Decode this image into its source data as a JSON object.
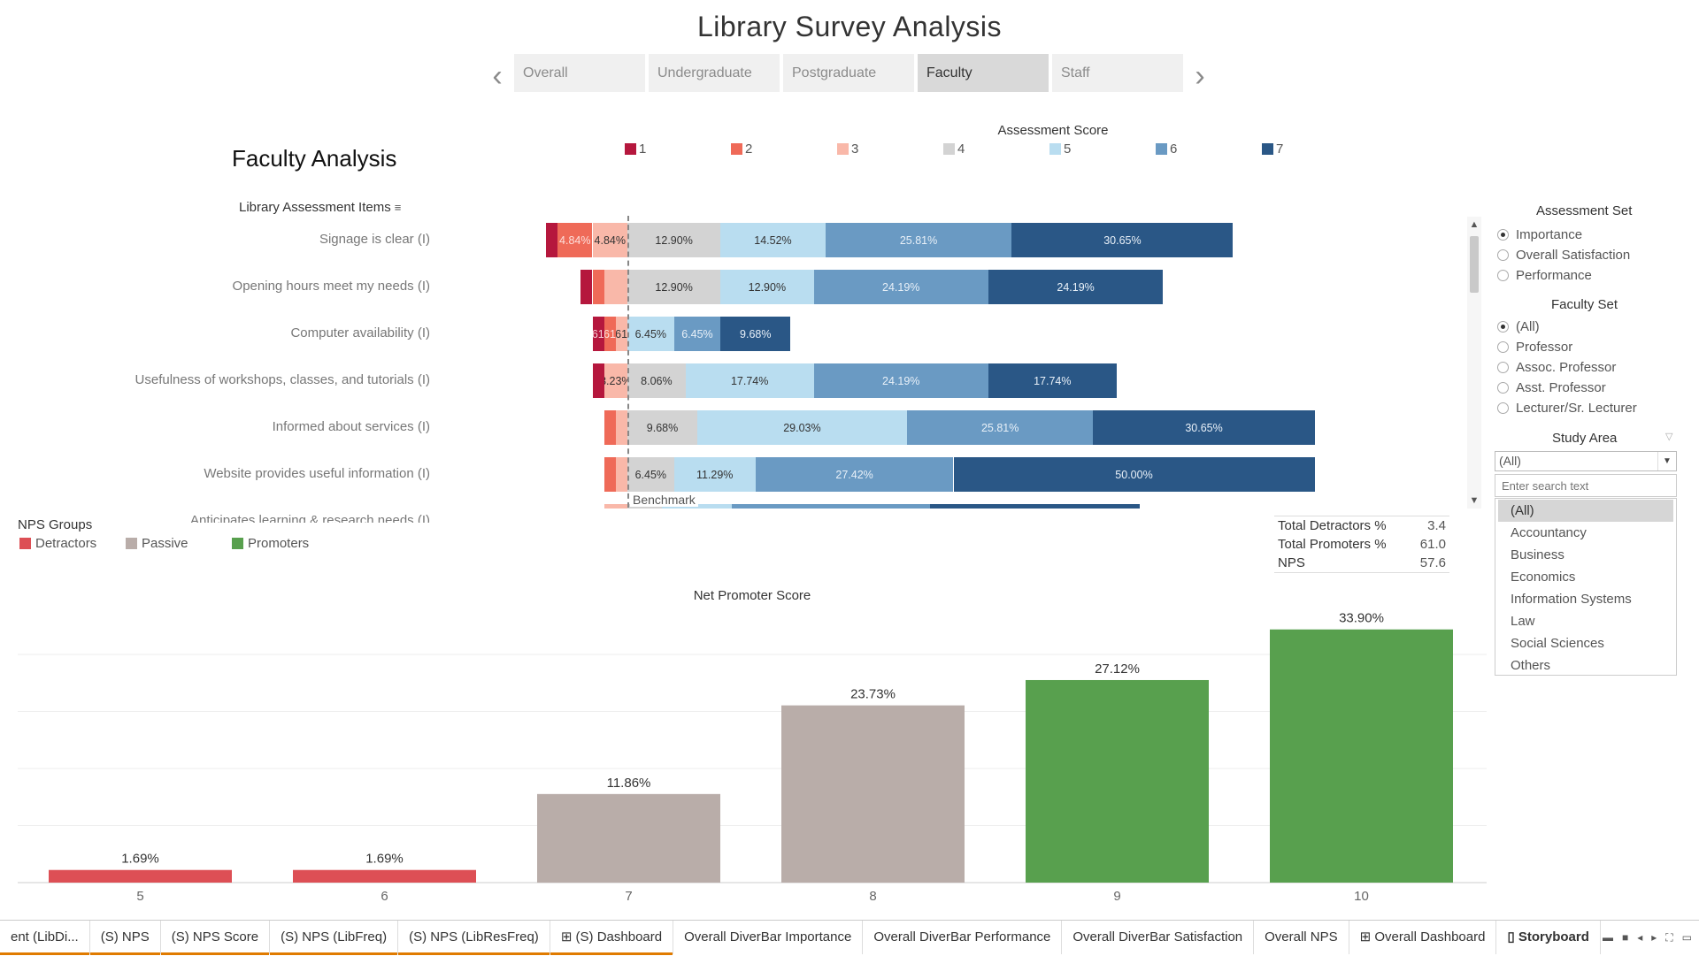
{
  "dashboard_title": "Library Survey Analysis",
  "story_nav": {
    "tabs": [
      {
        "label": "Overall",
        "active": false
      },
      {
        "label": "Undergraduate",
        "active": false
      },
      {
        "label": "Postgraduate",
        "active": false
      },
      {
        "label": "Faculty",
        "active": true
      },
      {
        "label": "Staff",
        "active": false
      }
    ]
  },
  "section_title": "Faculty Analysis",
  "assessment_legend": {
    "title": "Assessment Score",
    "items": [
      {
        "label": "1",
        "color": "#b5173d"
      },
      {
        "label": "2",
        "color": "#ef6a58"
      },
      {
        "label": "3",
        "color": "#f9b8a9"
      },
      {
        "label": "4",
        "color": "#d3d3d3"
      },
      {
        "label": "5",
        "color": "#b9ddf0"
      },
      {
        "label": "6",
        "color": "#6a9ac3"
      },
      {
        "label": "7",
        "color": "#2a5786"
      }
    ]
  },
  "items_header": "Library Assessment Items",
  "benchmark_label": "Benchmark",
  "chart_data": [
    {
      "type": "bar",
      "orientation": "horizontal-diverging",
      "categories": [
        "Signage is clear (I)",
        "Opening hours meet my needs (I)",
        "Computer availability (I)",
        "Usefulness of workshops, classes, and tutorials (I)",
        "Informed about services (I)",
        "Website provides useful information (I)",
        "Anticipates learning & research needs (I)"
      ],
      "series_scores": [
        "1",
        "2",
        "3",
        "4",
        "5",
        "6",
        "7"
      ],
      "rows": [
        {
          "item": "Signage is clear (I)",
          "values": [
            1.61,
            4.84,
            4.84,
            12.9,
            14.52,
            25.81,
            30.65
          ],
          "labels": [
            "",
            "4.84%",
            "4.84%",
            "12.90%",
            "14.52%",
            "25.81%",
            "30.65%"
          ]
        },
        {
          "item": "Opening hours meet my needs (I)",
          "values": [
            1.61,
            1.61,
            3.23,
            12.9,
            12.9,
            24.19,
            24.19
          ],
          "labels": [
            "",
            "",
            "",
            "12.90%",
            "12.90%",
            "24.19%",
            "24.19%"
          ]
        },
        {
          "item": "Computer availability (I)",
          "values": [
            1.61,
            1.61,
            1.61,
            0,
            6.45,
            6.45,
            9.68
          ],
          "labels": [
            "1.61%",
            "1.61%",
            "1.61%",
            "",
            "6.45%",
            "6.45%",
            "9.68%"
          ]
        },
        {
          "item": "Usefulness of workshops, classes, and tutorials (I)",
          "values": [
            1.61,
            0,
            3.23,
            8.06,
            17.74,
            24.19,
            17.74
          ],
          "labels": [
            "",
            "",
            "3.23%",
            "8.06%",
            "17.74%",
            "24.19%",
            "17.74%"
          ]
        },
        {
          "item": "Informed about services (I)",
          "values": [
            0,
            1.61,
            1.61,
            9.68,
            29.03,
            25.81,
            30.65
          ],
          "labels": [
            "",
            "",
            "",
            "9.68%",
            "29.03%",
            "25.81%",
            "30.65%"
          ]
        },
        {
          "item": "Website provides useful information (I)",
          "values": [
            0,
            1.61,
            1.61,
            6.45,
            11.29,
            27.42,
            50.0
          ],
          "labels": [
            "",
            "",
            "",
            "6.45%",
            "11.29%",
            "27.42%",
            "50.00%"
          ]
        },
        {
          "item": "Anticipates learning & research needs (I)",
          "values": [
            0,
            0,
            3.23,
            4.84,
            9.68,
            27.42,
            29.03
          ],
          "labels": [
            "",
            "",
            "",
            "",
            "",
            "",
            ""
          ]
        }
      ]
    },
    {
      "type": "bar",
      "title": "Net Promoter Score",
      "categories": [
        "5",
        "6",
        "7",
        "8",
        "9",
        "10"
      ],
      "values": [
        1.69,
        1.69,
        11.86,
        23.73,
        27.12,
        33.9
      ],
      "labels": [
        "1.69%",
        "1.69%",
        "11.86%",
        "23.73%",
        "27.12%",
        "33.90%"
      ],
      "groups": [
        "Detractors",
        "Detractors",
        "Passive",
        "Passive",
        "Promoters",
        "Promoters"
      ],
      "ylim": [
        0,
        36
      ]
    }
  ],
  "filters": {
    "assessment_set": {
      "title": "Assessment Set",
      "options": [
        {
          "label": "Importance",
          "selected": true
        },
        {
          "label": "Overall Satisfaction",
          "selected": false
        },
        {
          "label": "Performance",
          "selected": false
        }
      ]
    },
    "faculty_set": {
      "title": "Faculty Set",
      "options": [
        {
          "label": "(All)",
          "selected": true
        },
        {
          "label": "Professor",
          "selected": false
        },
        {
          "label": "Assoc. Professor",
          "selected": false
        },
        {
          "label": "Asst. Professor",
          "selected": false
        },
        {
          "label": "Lecturer/Sr. Lecturer",
          "selected": false
        }
      ]
    },
    "study_area": {
      "title": "Study Area",
      "selected_value": "(All)",
      "search_placeholder": "Enter search text",
      "options": [
        "(All)",
        "Accountancy",
        "Business",
        "Economics",
        "Information Systems",
        "Law",
        "Social Sciences",
        "Others"
      ]
    }
  },
  "nps_groups": {
    "title": "NPS Groups",
    "items": [
      {
        "label": "Detractors",
        "color": "#dd4f55"
      },
      {
        "label": "Passive",
        "color": "#b9ada9"
      },
      {
        "label": "Promoters",
        "color": "#58a04e"
      }
    ]
  },
  "nps_summary": [
    {
      "label": "Total Detractors %",
      "value": "3.4"
    },
    {
      "label": "Total Promoters %",
      "value": "61.0"
    },
    {
      "label": "NPS",
      "value": "57.6"
    }
  ],
  "sheet_tabs": [
    {
      "label": "ent (LibDi...",
      "orange": true,
      "active": false
    },
    {
      "label": "(S) NPS",
      "orange": true,
      "active": false
    },
    {
      "label": "(S) NPS Score",
      "orange": true,
      "active": false
    },
    {
      "label": "(S) NPS (LibFreq)",
      "orange": true,
      "active": false
    },
    {
      "label": "(S) NPS (LibResFreq)",
      "orange": true,
      "active": false
    },
    {
      "label": "⊞ (S) Dashboard",
      "orange": true,
      "active": false
    },
    {
      "label": "Overall DiverBar Importance",
      "orange": false,
      "active": false
    },
    {
      "label": "Overall DiverBar Performance",
      "orange": false,
      "active": false
    },
    {
      "label": "Overall DiverBar Satisfaction",
      "orange": false,
      "active": false
    },
    {
      "label": "Overall NPS",
      "orange": false,
      "active": false
    },
    {
      "label": "⊞ Overall Dashboard",
      "orange": false,
      "active": false
    },
    {
      "label": "▯ Storyboard",
      "orange": false,
      "active": true
    }
  ],
  "icons": {
    "nav_prev": "chevron-left-icon",
    "nav_next": "chevron-right-icon",
    "sort": "sort-icon",
    "filter": "filter-icon"
  }
}
